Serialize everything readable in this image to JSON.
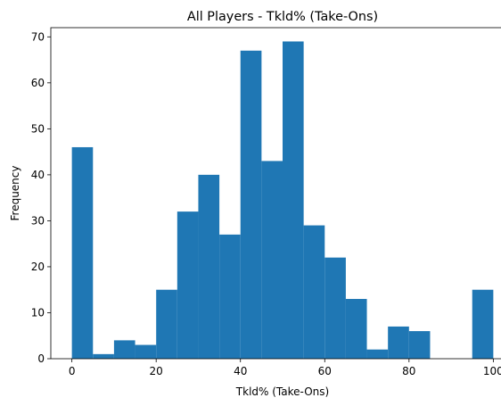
{
  "chart_data": {
    "type": "bar",
    "title": "All Players - Tkld% (Take-Ons)",
    "xlabel": "Tkld% (Take-Ons)",
    "ylabel": "Frequency",
    "xlim": [
      -5,
      105
    ],
    "ylim": [
      0,
      72
    ],
    "bin_edges": [
      0,
      5,
      10,
      15,
      20,
      25,
      30,
      35,
      40,
      45,
      50,
      55,
      60,
      65,
      70,
      75,
      80,
      85,
      90,
      95,
      100
    ],
    "values": [
      46,
      1,
      4,
      3,
      15,
      32,
      40,
      27,
      67,
      43,
      69,
      29,
      22,
      13,
      2,
      7,
      6,
      0,
      0,
      15
    ],
    "x_ticks": [
      0,
      20,
      40,
      60,
      80,
      100
    ],
    "y_ticks": [
      0,
      10,
      20,
      30,
      40,
      50,
      60,
      70
    ],
    "bar_color": "#1f77b4",
    "grid": false,
    "legend": "none"
  }
}
